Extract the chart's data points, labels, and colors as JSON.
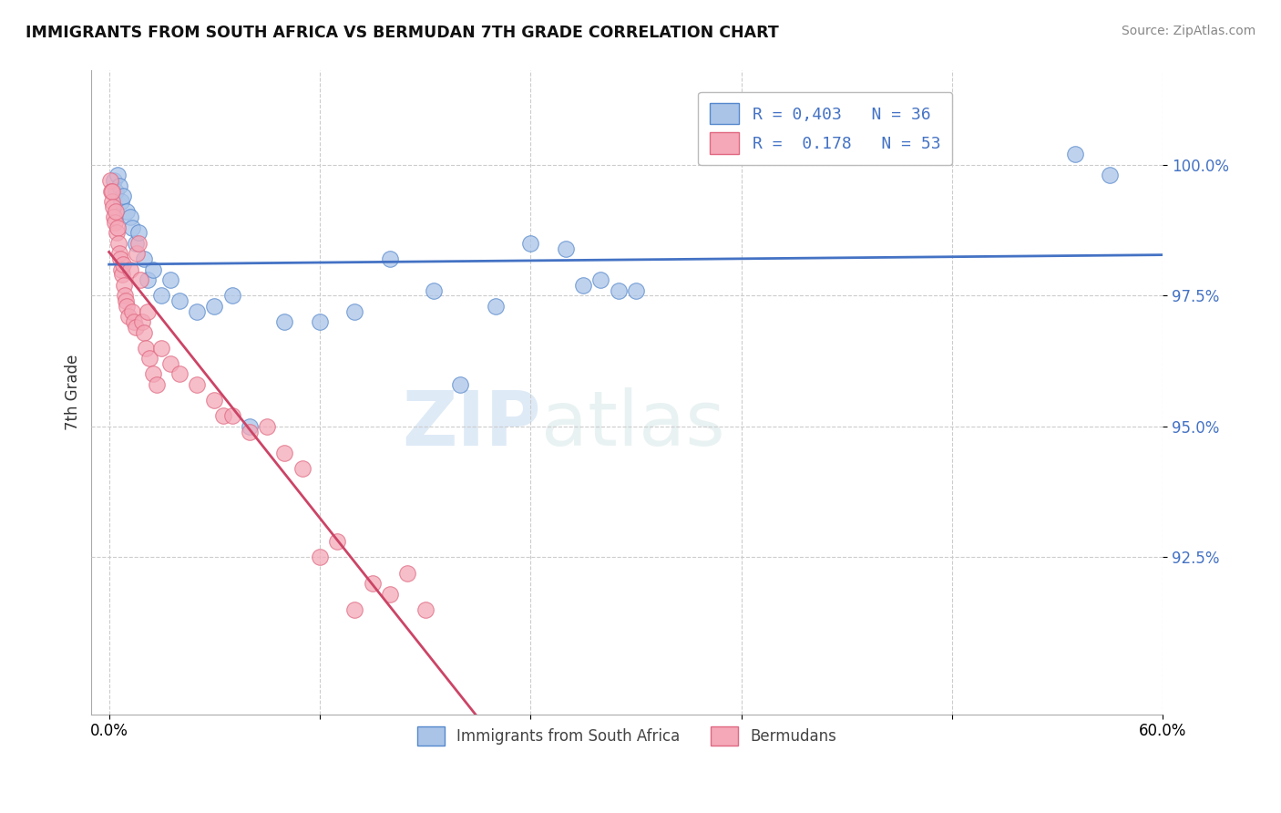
{
  "title": "IMMIGRANTS FROM SOUTH AFRICA VS BERMUDAN 7TH GRADE CORRELATION CHART",
  "source": "Source: ZipAtlas.com",
  "ylabel": "7th Grade",
  "xlim": [
    -1,
    60.0
  ],
  "ylim": [
    89.5,
    101.8
  ],
  "yticks": [
    92.5,
    95.0,
    97.5,
    100.0
  ],
  "ytick_labels": [
    "92.5%",
    "95.0%",
    "97.5%",
    "100.0%"
  ],
  "xticks": [
    0.0,
    12.0,
    24.0,
    36.0,
    48.0,
    60.0
  ],
  "xtick_labels": [
    "0.0%",
    "",
    "",
    "",
    "",
    "60.0%"
  ],
  "blue_color": "#aac4e8",
  "pink_color": "#f4a8b8",
  "blue_edge_color": "#5588cc",
  "pink_edge_color": "#e06880",
  "blue_line_color": "#4472c4",
  "pink_line_color": "#cc4466",
  "blue_scatter_x": [
    0.3,
    0.4,
    0.5,
    0.6,
    0.7,
    0.8,
    1.0,
    1.2,
    1.3,
    1.5,
    1.7,
    2.0,
    2.2,
    2.5,
    3.0,
    3.5,
    4.0,
    5.0,
    6.0,
    7.0,
    8.0,
    10.0,
    12.0,
    14.0,
    16.0,
    18.5,
    20.0,
    22.0,
    24.0,
    26.0,
    27.0,
    28.0,
    29.0,
    30.0,
    55.0,
    57.0
  ],
  "blue_scatter_y": [
    99.7,
    99.5,
    99.8,
    99.6,
    99.3,
    99.4,
    99.1,
    99.0,
    98.8,
    98.5,
    98.7,
    98.2,
    97.8,
    98.0,
    97.5,
    97.8,
    97.4,
    97.2,
    97.3,
    97.5,
    95.0,
    97.0,
    97.0,
    97.2,
    98.2,
    97.6,
    95.8,
    97.3,
    98.5,
    98.4,
    97.7,
    97.8,
    97.6,
    97.6,
    100.2,
    99.8
  ],
  "pink_scatter_x": [
    0.05,
    0.1,
    0.15,
    0.2,
    0.25,
    0.3,
    0.35,
    0.4,
    0.45,
    0.5,
    0.55,
    0.6,
    0.65,
    0.7,
    0.75,
    0.8,
    0.85,
    0.9,
    0.95,
    1.0,
    1.1,
    1.2,
    1.3,
    1.4,
    1.5,
    1.6,
    1.7,
    1.8,
    1.9,
    2.0,
    2.1,
    2.2,
    2.3,
    2.5,
    2.7,
    3.0,
    3.5,
    4.0,
    5.0,
    6.0,
    6.5,
    7.0,
    8.0,
    9.0,
    10.0,
    11.0,
    12.0,
    13.0,
    14.0,
    15.0,
    16.0,
    17.0,
    18.0
  ],
  "pink_scatter_y": [
    99.7,
    99.5,
    99.3,
    99.5,
    99.2,
    99.0,
    98.9,
    99.1,
    98.7,
    98.8,
    98.5,
    98.3,
    98.2,
    98.0,
    97.9,
    98.1,
    97.7,
    97.5,
    97.4,
    97.3,
    97.1,
    98.0,
    97.2,
    97.0,
    96.9,
    98.3,
    98.5,
    97.8,
    97.0,
    96.8,
    96.5,
    97.2,
    96.3,
    96.0,
    95.8,
    96.5,
    96.2,
    96.0,
    95.8,
    95.5,
    95.2,
    95.2,
    94.9,
    95.0,
    94.5,
    94.2,
    92.5,
    92.8,
    91.5,
    92.0,
    91.8,
    92.2,
    91.5
  ],
  "legend_label1": "R = 0,403   N = 36",
  "legend_label2": "R =  0.178   N = 53",
  "bottom_label1": "Immigrants from South Africa",
  "bottom_label2": "Bermudans",
  "watermark1": "ZIP",
  "watermark2": "atlas",
  "background_color": "#ffffff",
  "grid_color": "#cccccc"
}
